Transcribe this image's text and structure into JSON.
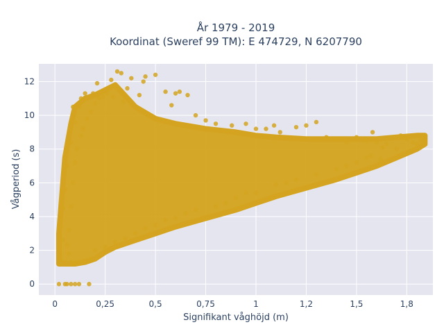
{
  "chart_data": {
    "type": "scatter",
    "title_line1": "År 1979 - 2019",
    "title_line2": "Koordinat (Sweref 99 TM): E 474729, N 6207790",
    "xlabel": "Signifikant våghöjd (m)",
    "ylabel": "Vågperiod (s)",
    "xlim": [
      -0.08,
      1.88
    ],
    "ylim": [
      -0.65,
      13.05
    ],
    "x_ticks": [
      {
        "value": 0,
        "label": "0"
      },
      {
        "value": 0.25,
        "label": "0,25"
      },
      {
        "value": 0.5,
        "label": "0,5"
      },
      {
        "value": 0.75,
        "label": "0,75"
      },
      {
        "value": 1,
        "label": "1"
      },
      {
        "value": 1.25,
        "label": "1,2"
      },
      {
        "value": 1.5,
        "label": "1,5"
      },
      {
        "value": 1.75,
        "label": "1,8"
      }
    ],
    "y_ticks": [
      {
        "value": 0,
        "label": "0"
      },
      {
        "value": 2,
        "label": "2"
      },
      {
        "value": 4,
        "label": "4"
      },
      {
        "value": 6,
        "label": "6"
      },
      {
        "value": 8,
        "label": "8"
      },
      {
        "value": 10,
        "label": "10"
      },
      {
        "value": 12,
        "label": "12"
      }
    ],
    "grid": true,
    "legend": "none",
    "marker_color": "#d4a420",
    "background_color": "#e5e5f0",
    "envelope": {
      "x": [
        0.02,
        0.05,
        0.08,
        0.1,
        0.15,
        0.2,
        0.25,
        0.3,
        0.4,
        0.5,
        0.6,
        0.75,
        0.9,
        1.0,
        1.1,
        1.25,
        1.4,
        1.5,
        1.6,
        1.7,
        1.8,
        1.84
      ],
      "y_low": [
        1.2,
        1.2,
        1.2,
        1.2,
        1.3,
        1.5,
        1.9,
        2.2,
        2.6,
        3.0,
        3.4,
        3.9,
        4.4,
        4.8,
        5.2,
        5.7,
        6.2,
        6.6,
        7.0,
        7.5,
        8.0,
        8.3
      ],
      "y_high": [
        3.0,
        7.5,
        9.5,
        10.5,
        11.0,
        11.2,
        11.5,
        11.8,
        10.5,
        9.8,
        9.5,
        9.2,
        9.0,
        8.8,
        8.7,
        8.6,
        8.6,
        8.6,
        8.6,
        8.7,
        8.8,
        8.8
      ]
    },
    "points": [
      [
        0.04,
        2.6
      ],
      [
        0.05,
        0.0
      ],
      [
        0.02,
        0.0
      ],
      [
        0.06,
        0.0
      ],
      [
        0.08,
        0.0
      ],
      [
        0.1,
        0.0
      ],
      [
        0.12,
        0.0
      ],
      [
        0.17,
        0.0
      ],
      [
        0.03,
        1.4
      ],
      [
        0.05,
        1.3
      ],
      [
        0.04,
        4.5
      ],
      [
        0.05,
        5.6
      ],
      [
        0.06,
        7.0
      ],
      [
        0.08,
        8.4
      ],
      [
        0.09,
        10.5
      ],
      [
        0.12,
        10.5
      ],
      [
        0.1,
        9.6
      ],
      [
        0.13,
        11.0
      ],
      [
        0.15,
        11.3
      ],
      [
        0.19,
        11.3
      ],
      [
        0.21,
        11.9
      ],
      [
        0.28,
        12.1
      ],
      [
        0.31,
        12.6
      ],
      [
        0.33,
        12.5
      ],
      [
        0.38,
        12.2
      ],
      [
        0.44,
        12.0
      ],
      [
        0.45,
        12.3
      ],
      [
        0.5,
        12.4
      ],
      [
        0.36,
        11.6
      ],
      [
        0.42,
        11.2
      ],
      [
        0.55,
        11.4
      ],
      [
        0.6,
        11.3
      ],
      [
        0.62,
        11.4
      ],
      [
        0.66,
        11.2
      ],
      [
        0.58,
        10.6
      ],
      [
        0.7,
        10.0
      ],
      [
        0.75,
        9.7
      ],
      [
        0.8,
        9.5
      ],
      [
        0.88,
        9.4
      ],
      [
        0.95,
        9.5
      ],
      [
        1.0,
        9.2
      ],
      [
        1.05,
        9.2
      ],
      [
        1.09,
        9.4
      ],
      [
        1.12,
        9.0
      ],
      [
        1.2,
        9.3
      ],
      [
        1.25,
        9.4
      ],
      [
        1.3,
        9.6
      ],
      [
        1.35,
        8.7
      ],
      [
        1.4,
        8.6
      ],
      [
        1.45,
        8.4
      ],
      [
        1.5,
        8.7
      ],
      [
        1.55,
        8.5
      ],
      [
        1.58,
        9.0
      ],
      [
        1.6,
        8.4
      ],
      [
        1.65,
        8.3
      ],
      [
        1.7,
        8.0
      ],
      [
        1.72,
        8.8
      ],
      [
        1.75,
        8.6
      ],
      [
        1.78,
        8.4
      ],
      [
        1.8,
        8.3
      ],
      [
        1.82,
        8.5
      ],
      [
        1.84,
        8.8
      ],
      [
        1.68,
        8.7
      ],
      [
        1.63,
        8.1
      ],
      [
        1.57,
        7.6
      ],
      [
        1.62,
        7.4
      ],
      [
        1.55,
        7.5
      ],
      [
        1.5,
        7.2
      ],
      [
        1.45,
        7.0
      ],
      [
        1.4,
        6.8
      ],
      [
        1.3,
        6.5
      ],
      [
        1.2,
        6.2
      ],
      [
        1.15,
        6.0
      ],
      [
        1.1,
        5.9
      ],
      [
        1.0,
        5.4
      ],
      [
        0.95,
        5.4
      ],
      [
        0.9,
        5.1
      ],
      [
        0.85,
        4.8
      ],
      [
        0.8,
        4.6
      ],
      [
        0.7,
        4.4
      ],
      [
        0.65,
        4.2
      ],
      [
        0.6,
        3.9
      ],
      [
        0.55,
        3.8
      ],
      [
        0.5,
        3.5
      ],
      [
        0.45,
        3.3
      ],
      [
        0.4,
        3.0
      ],
      [
        0.35,
        2.7
      ],
      [
        0.3,
        2.5
      ],
      [
        0.25,
        2.2
      ],
      [
        0.2,
        2.0
      ],
      [
        0.18,
        1.5
      ],
      [
        0.15,
        1.4
      ],
      [
        0.12,
        1.3
      ],
      [
        0.1,
        1.2
      ],
      [
        0.08,
        1.3
      ],
      [
        0.07,
        1.8
      ],
      [
        0.06,
        2.3
      ],
      [
        0.07,
        3.2
      ],
      [
        0.08,
        4.6
      ],
      [
        0.09,
        6.0
      ],
      [
        0.1,
        7.2
      ],
      [
        0.11,
        8.0
      ],
      [
        0.13,
        8.8
      ],
      [
        0.14,
        9.2
      ],
      [
        0.16,
        9.8
      ],
      [
        0.18,
        10.2
      ],
      [
        0.2,
        10.7
      ],
      [
        0.22,
        11.0
      ],
      [
        0.24,
        11.1
      ],
      [
        0.26,
        11.3
      ],
      [
        0.29,
        11.1
      ],
      [
        0.34,
        10.8
      ]
    ]
  }
}
